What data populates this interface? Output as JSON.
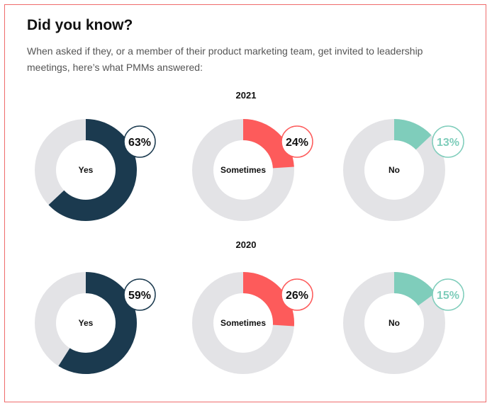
{
  "title": "Did you know?",
  "intro": "When asked if they, or a member of their product marketing team, get invited to leadership meetings, here’s what PMMs answered:",
  "colors": {
    "border": "#ef6b6b",
    "track": "#e3e3e6",
    "yes": "#1b3a4f",
    "sometimes": "#fd5b5b",
    "no": "#7fcdbb"
  },
  "chart_data": [
    {
      "type": "pie",
      "subtitle": "2021",
      "categories": [
        "Yes",
        "Sometimes",
        "No"
      ],
      "values": [
        63,
        24,
        13
      ],
      "value_labels": [
        "63%",
        "24%",
        "13%"
      ],
      "colors": [
        "#1b3a4f",
        "#fd5b5b",
        "#7fcdbb"
      ],
      "unit": "%"
    },
    {
      "type": "pie",
      "subtitle": "2020",
      "categories": [
        "Yes",
        "Sometimes",
        "No"
      ],
      "values": [
        59,
        26,
        15
      ],
      "value_labels": [
        "59%",
        "26%",
        "15%"
      ],
      "colors": [
        "#1b3a4f",
        "#fd5b5b",
        "#7fcdbb"
      ],
      "unit": "%"
    }
  ]
}
